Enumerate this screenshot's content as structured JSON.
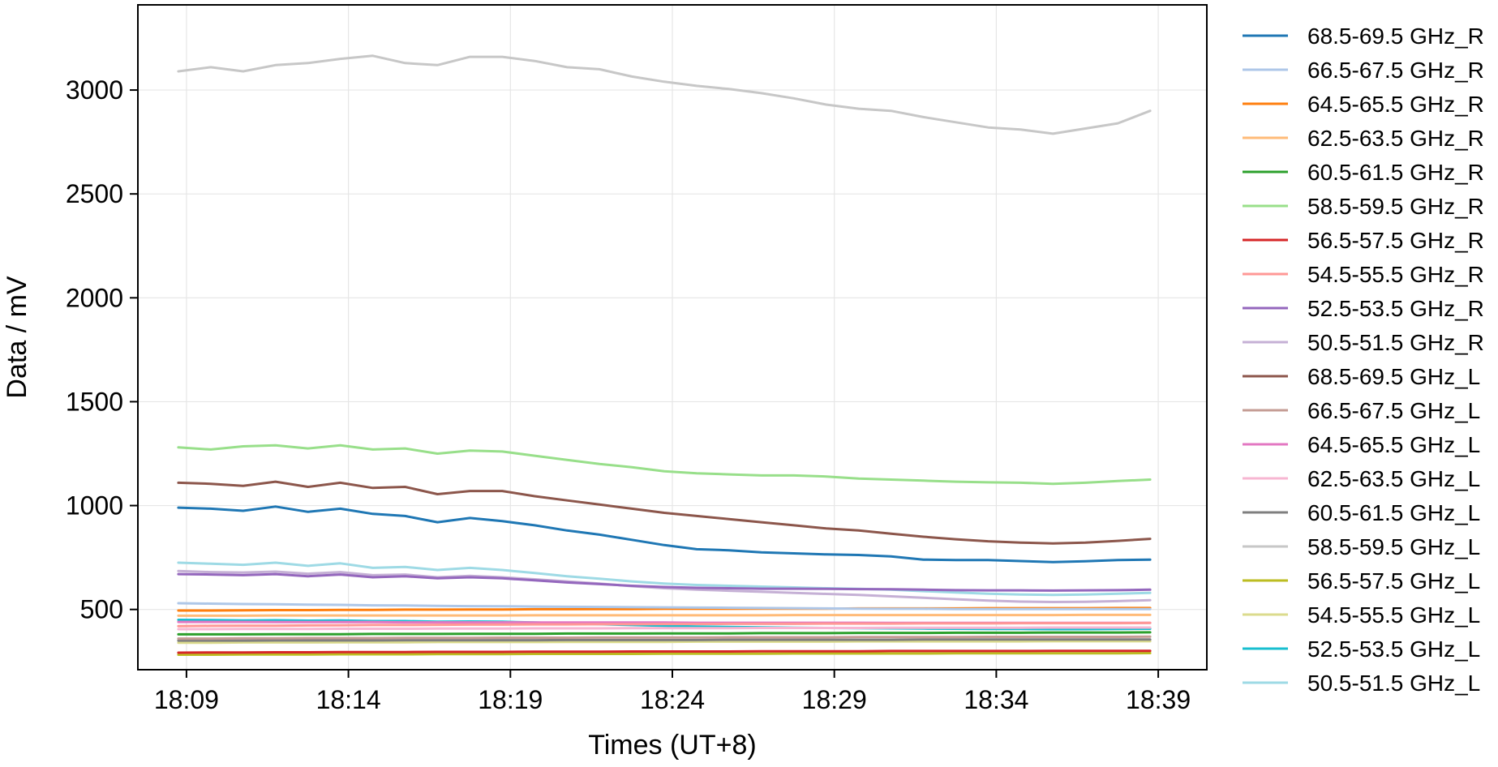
{
  "chart_data": {
    "type": "line",
    "xlabel": "Times (UT+8)",
    "ylabel": "Data / mV",
    "xlim": [
      "18:07:30",
      "18:40:30"
    ],
    "ylim": [
      210,
      3410
    ],
    "x_ticks": [
      "18:09",
      "18:14",
      "18:19",
      "18:24",
      "18:29",
      "18:34",
      "18:39"
    ],
    "y_ticks": [
      500,
      1000,
      1500,
      2000,
      2500,
      3000
    ],
    "grid": true,
    "legend_position": "outside-right",
    "x_times": [
      "18:08:45",
      "18:09:45",
      "18:10:45",
      "18:11:45",
      "18:12:45",
      "18:13:45",
      "18:14:45",
      "18:15:45",
      "18:16:45",
      "18:17:45",
      "18:18:45",
      "18:19:45",
      "18:20:45",
      "18:21:45",
      "18:22:45",
      "18:23:45",
      "18:24:45",
      "18:25:45",
      "18:26:45",
      "18:27:45",
      "18:28:45",
      "18:29:45",
      "18:30:45",
      "18:31:45",
      "18:32:45",
      "18:33:45",
      "18:34:45",
      "18:35:45",
      "18:36:45",
      "18:37:45",
      "18:38:45"
    ],
    "series": [
      {
        "name": "68.5-69.5 GHz_R",
        "color": "#1f77b4",
        "values": [
          990,
          985,
          975,
          995,
          970,
          985,
          960,
          950,
          920,
          940,
          925,
          905,
          880,
          860,
          835,
          810,
          790,
          785,
          775,
          770,
          765,
          762,
          755,
          740,
          738,
          738,
          733,
          728,
          732,
          738,
          740
        ]
      },
      {
        "name": "66.5-67.5 GHz_R",
        "color": "#aec7e8",
        "values": [
          530,
          528,
          526,
          525,
          523,
          522,
          520,
          519,
          517,
          516,
          515,
          514,
          513,
          512,
          511,
          510,
          509,
          508,
          507,
          506,
          505,
          504,
          503,
          503,
          502,
          502,
          502,
          502,
          502,
          502,
          502
        ]
      },
      {
        "name": "64.5-65.5 GHz_R",
        "color": "#ff7f0e",
        "values": [
          495,
          495,
          496,
          497,
          497,
          498,
          498,
          499,
          499,
          500,
          500,
          501,
          501,
          502,
          502,
          503,
          503,
          503,
          504,
          504,
          504,
          505,
          505,
          505,
          505,
          506,
          506,
          506,
          506,
          507,
          507
        ]
      },
      {
        "name": "62.5-63.5 GHz_R",
        "color": "#ffbb78",
        "values": [
          470,
          470,
          470,
          471,
          471,
          471,
          471,
          471,
          471,
          471,
          471,
          472,
          472,
          472,
          472,
          472,
          472,
          472,
          472,
          473,
          473,
          473,
          473,
          473,
          473,
          473,
          473,
          473,
          474,
          474,
          474
        ]
      },
      {
        "name": "60.5-61.5 GHz_R",
        "color": "#2ca02c",
        "values": [
          380,
          380,
          380,
          381,
          381,
          381,
          382,
          382,
          382,
          383,
          383,
          383,
          384,
          384,
          384,
          385,
          385,
          385,
          386,
          386,
          386,
          387,
          387,
          387,
          388,
          388,
          388,
          389,
          389,
          389,
          390
        ]
      },
      {
        "name": "58.5-59.5 GHz_R",
        "color": "#98df8a",
        "values": [
          1280,
          1270,
          1285,
          1290,
          1275,
          1290,
          1270,
          1275,
          1250,
          1265,
          1260,
          1240,
          1220,
          1200,
          1185,
          1165,
          1155,
          1150,
          1145,
          1145,
          1140,
          1130,
          1125,
          1120,
          1115,
          1112,
          1110,
          1105,
          1110,
          1118,
          1125
        ]
      },
      {
        "name": "56.5-57.5 GHz_R",
        "color": "#d62728",
        "values": [
          292,
          293,
          293,
          294,
          294,
          295,
          295,
          295,
          296,
          296,
          296,
          297,
          297,
          297,
          298,
          298,
          298,
          298,
          299,
          299,
          299,
          299,
          300,
          300,
          300,
          300,
          300,
          301,
          301,
          301,
          301
        ]
      },
      {
        "name": "54.5-55.5 GHz_R",
        "color": "#ff9896",
        "values": [
          420,
          421,
          422,
          422,
          423,
          424,
          425,
          425,
          426,
          427,
          427,
          428,
          428,
          429,
          429,
          430,
          430,
          431,
          431,
          431,
          432,
          432,
          432,
          433,
          433,
          433,
          434,
          434,
          434,
          434,
          435
        ]
      },
      {
        "name": "52.5-53.5 GHz_R",
        "color": "#9467bd",
        "values": [
          670,
          668,
          665,
          670,
          660,
          668,
          655,
          660,
          650,
          655,
          650,
          640,
          630,
          622,
          614,
          608,
          604,
          602,
          600,
          600,
          599,
          598,
          597,
          595,
          593,
          592,
          592,
          591,
          592,
          593,
          595
        ]
      },
      {
        "name": "50.5-51.5 GHz_R",
        "color": "#c5b0d5",
        "values": [
          685,
          680,
          678,
          682,
          672,
          680,
          665,
          668,
          655,
          662,
          655,
          645,
          635,
          625,
          612,
          602,
          595,
          590,
          585,
          580,
          575,
          570,
          563,
          556,
          549,
          543,
          538,
          536,
          537,
          540,
          545
        ]
      },
      {
        "name": "68.5-69.5 GHz_L",
        "color": "#8c564b",
        "values": [
          1110,
          1105,
          1095,
          1115,
          1090,
          1110,
          1085,
          1090,
          1055,
          1070,
          1070,
          1045,
          1025,
          1005,
          985,
          965,
          950,
          935,
          920,
          905,
          890,
          880,
          865,
          850,
          838,
          828,
          822,
          818,
          822,
          830,
          840
        ]
      },
      {
        "name": "66.5-67.5 GHz_L",
        "color": "#c49c94",
        "values": [
          360,
          360,
          361,
          361,
          362,
          362,
          362,
          363,
          363,
          363,
          364,
          364,
          364,
          365,
          365,
          365,
          365,
          366,
          366,
          366,
          366,
          367,
          367,
          367,
          367,
          368,
          368,
          368,
          368,
          368,
          369
        ]
      },
      {
        "name": "64.5-65.5 GHz_L",
        "color": "#e377c2",
        "values": [
          440,
          440,
          440,
          439,
          439,
          439,
          439,
          438,
          438,
          438,
          438,
          437,
          437,
          437,
          437,
          437,
          436,
          436,
          436,
          436,
          436,
          436,
          435,
          435,
          435,
          435,
          435,
          435,
          435,
          435,
          435
        ]
      },
      {
        "name": "62.5-63.5 GHz_L",
        "color": "#f7b6d2",
        "values": [
          405,
          405,
          406,
          406,
          406,
          407,
          407,
          407,
          408,
          408,
          408,
          409,
          409,
          409,
          410,
          410,
          410,
          410,
          411,
          411,
          411,
          411,
          412,
          412,
          412,
          412,
          412,
          413,
          413,
          413,
          413
        ]
      },
      {
        "name": "60.5-61.5 GHz_L",
        "color": "#7f7f7f",
        "values": [
          350,
          350,
          350,
          351,
          351,
          351,
          351,
          352,
          352,
          352,
          352,
          352,
          353,
          353,
          353,
          353,
          353,
          354,
          354,
          354,
          354,
          354,
          354,
          355,
          355,
          355,
          355,
          355,
          355,
          355,
          355
        ]
      },
      {
        "name": "58.5-59.5 GHz_L",
        "color": "#c7c7c7",
        "values": [
          3090,
          3110,
          3090,
          3120,
          3130,
          3150,
          3165,
          3130,
          3120,
          3160,
          3160,
          3140,
          3110,
          3100,
          3065,
          3040,
          3020,
          3005,
          2985,
          2960,
          2930,
          2910,
          2900,
          2870,
          2845,
          2820,
          2810,
          2790,
          2815,
          2840,
          2900
        ]
      },
      {
        "name": "56.5-57.5 GHz_L",
        "color": "#bcbd22",
        "values": [
          282,
          282,
          283,
          283,
          283,
          284,
          284,
          284,
          285,
          285,
          285,
          286,
          286,
          286,
          286,
          287,
          287,
          287,
          287,
          288,
          288,
          288,
          288,
          288,
          289,
          289,
          289,
          289,
          289,
          289,
          290
        ]
      },
      {
        "name": "54.5-55.5 GHz_L",
        "color": "#dbdb8d",
        "values": [
          340,
          340,
          341,
          341,
          341,
          342,
          342,
          342,
          343,
          343,
          343,
          343,
          344,
          344,
          344,
          344,
          345,
          345,
          345,
          345,
          345,
          346,
          346,
          346,
          346,
          346,
          346,
          347,
          347,
          347,
          347
        ]
      },
      {
        "name": "52.5-53.5 GHz_L",
        "color": "#17becf",
        "values": [
          450,
          449,
          447,
          448,
          446,
          447,
          444,
          444,
          441,
          442,
          441,
          437,
          433,
          429,
          425,
          421,
          418,
          416,
          414,
          412,
          411,
          410,
          409,
          408,
          407,
          406,
          406,
          405,
          405,
          406,
          407
        ]
      },
      {
        "name": "50.5-51.5 GHz_L",
        "color": "#9edae5",
        "values": [
          725,
          720,
          715,
          725,
          710,
          722,
          700,
          705,
          690,
          700,
          690,
          675,
          660,
          648,
          635,
          625,
          618,
          614,
          610,
          606,
          602,
          599,
          595,
          588,
          582,
          576,
          572,
          570,
          572,
          576,
          580
        ]
      }
    ]
  }
}
